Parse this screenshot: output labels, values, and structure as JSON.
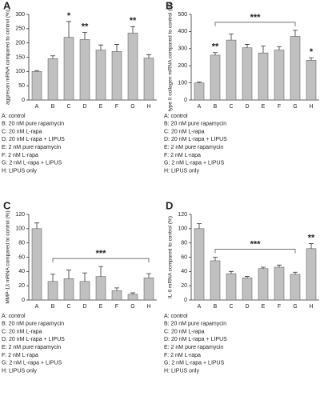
{
  "chart_data": [
    {
      "type": "bar",
      "panel": "A",
      "ylabel": "aggrecan mRNA compared to control (%)",
      "categories": [
        "A",
        "B",
        "C",
        "D",
        "E",
        "F",
        "G",
        "H"
      ],
      "values": [
        100,
        145,
        220,
        212,
        175,
        170,
        235,
        147
      ],
      "errors": [
        3,
        10,
        55,
        25,
        18,
        25,
        22,
        12
      ],
      "significance": [
        null,
        null,
        "*",
        "**",
        null,
        null,
        "**",
        null
      ],
      "ylim": [
        0,
        300
      ],
      "yticks": [
        0,
        50,
        100,
        150,
        200,
        250,
        300
      ],
      "color": "#c0c0c0",
      "legend": [
        "A: control",
        "B: 20 nM pure rapamycin",
        "C: 20 nM L-rapa",
        "D: 20 nM L-rapa + LIPUS",
        "E: 2 nM pure rapamycin",
        "F: 2 nM L-rapa",
        "G: 2 nM L-rapa + LIPUS",
        "H: LIPUS only"
      ]
    },
    {
      "type": "bar",
      "panel": "B",
      "ylabel": "type II collagen mRNA compared to control (%)",
      "categories": [
        "A",
        "B",
        "C",
        "D",
        "E",
        "F",
        "G",
        "H"
      ],
      "values": [
        100,
        262,
        350,
        305,
        275,
        292,
        372,
        232
      ],
      "errors": [
        5,
        15,
        35,
        20,
        40,
        20,
        35,
        15
      ],
      "significance": [
        null,
        "**",
        null,
        null,
        null,
        null,
        null,
        "*"
      ],
      "bracket": {
        "from": "B",
        "to": "G",
        "label": "***"
      },
      "ylim": [
        0,
        500
      ],
      "yticks": [
        0,
        100,
        200,
        300,
        400,
        500
      ],
      "color": "#c0c0c0",
      "legend": [
        "A: control",
        "B: 20 nM pure rapamycin",
        "C: 20 nM L-rapa",
        "D: 20 nM L-rapa + LIPUS",
        "E: 2 nM pure rapamycin",
        "F: 2 nM L-rapa",
        "G: 2 nM L-rapa + LIPUS",
        "H: LIPUS only"
      ]
    },
    {
      "type": "bar",
      "panel": "C",
      "ylabel": "MMP-13 mRNA compared to control (%)",
      "categories": [
        "A",
        "B",
        "C",
        "D",
        "E",
        "F",
        "G",
        "H"
      ],
      "values": [
        100,
        26,
        30,
        26,
        33,
        13,
        8,
        31
      ],
      "errors": [
        8,
        10,
        12,
        12,
        14,
        4,
        2,
        6
      ],
      "bracket": {
        "from": "B",
        "to": "H",
        "label": "***"
      },
      "ylim": [
        0,
        120
      ],
      "yticks": [
        0,
        20,
        40,
        60,
        80,
        100,
        120
      ],
      "color": "#c0c0c0",
      "legend": [
        "A: control",
        "B: 20 nM pure rapamycin",
        "C: 20 nM L-rapa",
        "D: 20 nM L-rapa + LIPUS",
        "E: 2 nM pure rapamycin",
        "F: 2 nM L-rapa",
        "G: 2 nM L-rapa + LIPUS",
        "H: LIPUS only"
      ]
    },
    {
      "type": "bar",
      "panel": "D",
      "ylabel": "IL-6 mRNA compared to control (%)",
      "categories": [
        "A",
        "B",
        "C",
        "D",
        "E",
        "F",
        "G",
        "H"
      ],
      "values": [
        100,
        55,
        37,
        31,
        44,
        46,
        36,
        72
      ],
      "errors": [
        7,
        5,
        3,
        2,
        2,
        3,
        3,
        7
      ],
      "significance": [
        null,
        null,
        null,
        null,
        null,
        null,
        null,
        "**"
      ],
      "bracket": {
        "from": "B",
        "to": "G",
        "label": "***"
      },
      "ylim": [
        0,
        120
      ],
      "yticks": [
        0,
        20,
        40,
        60,
        80,
        100,
        120
      ],
      "color": "#c0c0c0",
      "legend": [
        "A: control",
        "B: 20 nM pure rapamycin",
        "C: 20 nM L-rapa",
        "D: 20 nM L-rapa + LIPUS",
        "E: 2 nM pure rapamycin",
        "F: 2 nM L-rapa",
        "G: 2 nM L-rapa + LIPUS",
        "H: LIPUS only"
      ]
    }
  ]
}
